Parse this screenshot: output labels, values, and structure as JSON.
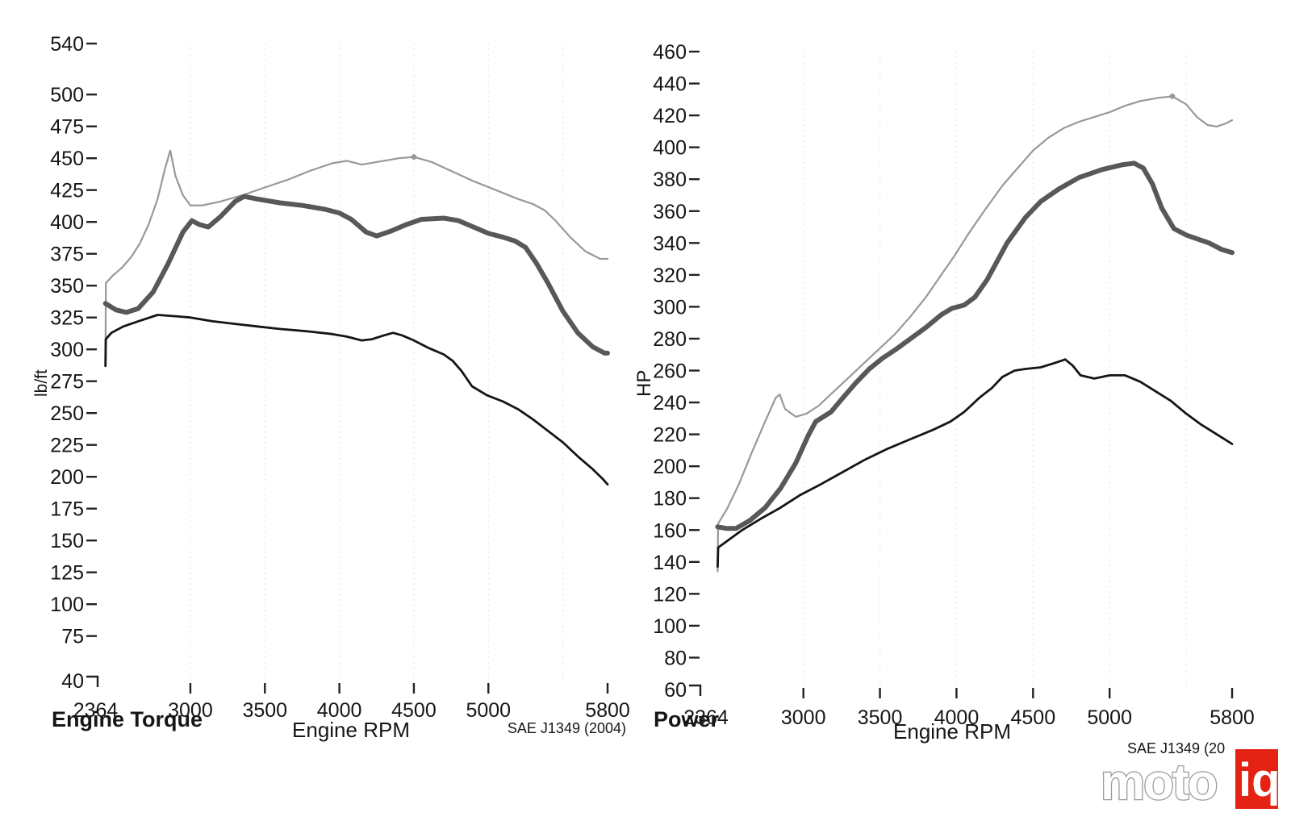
{
  "branding": {
    "logo_moto": "moto",
    "logo_iq": "iq",
    "logo_red": "#e42315",
    "logo_outline_gray": "#9b9b9b"
  },
  "chart_data": [
    {
      "id": "torque",
      "type": "line",
      "title": "Engine Torque",
      "xlabel": "Engine RPM",
      "ylabel": "lb/ft",
      "note": "SAE J1349 (2004)",
      "xlim": [
        2364,
        5800
      ],
      "ylim": [
        40,
        540
      ],
      "x_ticks": [
        2364,
        3000,
        3500,
        4000,
        4500,
        5000,
        5800
      ],
      "y_ticks": [
        540,
        500,
        475,
        450,
        425,
        400,
        375,
        350,
        325,
        300,
        275,
        250,
        225,
        200,
        175,
        150,
        125,
        100,
        75,
        40
      ],
      "grid_x": [
        3000,
        3500,
        4000,
        4500,
        5000,
        5500
      ],
      "legend": "none",
      "series": [
        {
          "id": "run-tuned-high",
          "color": "#989898",
          "width": 2.2,
          "marker": [
            4500,
            451
          ],
          "points": [
            [
              2430,
              289
            ],
            [
              2433,
              352
            ],
            [
              2480,
              358
            ],
            [
              2540,
              364
            ],
            [
              2600,
              372
            ],
            [
              2660,
              383
            ],
            [
              2720,
              398
            ],
            [
              2780,
              418
            ],
            [
              2830,
              442
            ],
            [
              2865,
              456
            ],
            [
              2900,
              436
            ],
            [
              2950,
              421
            ],
            [
              3000,
              413
            ],
            [
              3080,
              413
            ],
            [
              3200,
              416
            ],
            [
              3350,
              421
            ],
            [
              3500,
              427
            ],
            [
              3650,
              433
            ],
            [
              3800,
              440
            ],
            [
              3950,
              446
            ],
            [
              4050,
              448
            ],
            [
              4150,
              445
            ],
            [
              4250,
              447
            ],
            [
              4400,
              450
            ],
            [
              4500,
              451
            ],
            [
              4620,
              447
            ],
            [
              4750,
              440
            ],
            [
              4900,
              432
            ],
            [
              5050,
              425
            ],
            [
              5200,
              418
            ],
            [
              5300,
              414
            ],
            [
              5380,
              409
            ],
            [
              5450,
              401
            ],
            [
              5550,
              388
            ],
            [
              5650,
              377
            ],
            [
              5750,
              371
            ],
            [
              5800,
              371
            ]
          ]
        },
        {
          "id": "run-tuned-mid",
          "color": "#585858",
          "width": 6,
          "marker": null,
          "points": [
            [
              2430,
              336
            ],
            [
              2500,
              331
            ],
            [
              2570,
              329
            ],
            [
              2650,
              332
            ],
            [
              2750,
              345
            ],
            [
              2850,
              367
            ],
            [
              2950,
              392
            ],
            [
              3010,
              401
            ],
            [
              3060,
              398
            ],
            [
              3120,
              396
            ],
            [
              3200,
              404
            ],
            [
              3300,
              416
            ],
            [
              3360,
              420
            ],
            [
              3450,
              418
            ],
            [
              3600,
              415
            ],
            [
              3750,
              413
            ],
            [
              3900,
              410
            ],
            [
              4000,
              407
            ],
            [
              4080,
              402
            ],
            [
              4180,
              392
            ],
            [
              4250,
              389
            ],
            [
              4350,
              393
            ],
            [
              4450,
              398
            ],
            [
              4550,
              402
            ],
            [
              4700,
              403
            ],
            [
              4800,
              401
            ],
            [
              4900,
              396
            ],
            [
              5000,
              391
            ],
            [
              5100,
              388
            ],
            [
              5180,
              385
            ],
            [
              5250,
              380
            ],
            [
              5320,
              368
            ],
            [
              5400,
              352
            ],
            [
              5500,
              330
            ],
            [
              5600,
              313
            ],
            [
              5700,
              302
            ],
            [
              5780,
              297
            ],
            [
              5800,
              297
            ]
          ]
        },
        {
          "id": "run-stock",
          "color": "#151515",
          "width": 2.8,
          "marker": null,
          "points": [
            [
              2430,
              287
            ],
            [
              2432,
              308
            ],
            [
              2470,
              313
            ],
            [
              2550,
              318
            ],
            [
              2650,
              322
            ],
            [
              2780,
              327
            ],
            [
              2900,
              326
            ],
            [
              3000,
              325
            ],
            [
              3150,
              322
            ],
            [
              3300,
              320
            ],
            [
              3450,
              318
            ],
            [
              3600,
              316
            ],
            [
              3800,
              314
            ],
            [
              3950,
              312
            ],
            [
              4050,
              310
            ],
            [
              4150,
              307
            ],
            [
              4220,
              308
            ],
            [
              4300,
              311
            ],
            [
              4360,
              313
            ],
            [
              4420,
              311
            ],
            [
              4500,
              307
            ],
            [
              4600,
              301
            ],
            [
              4700,
              296
            ],
            [
              4760,
              291
            ],
            [
              4820,
              283
            ],
            [
              4890,
              271
            ],
            [
              4990,
              264
            ],
            [
              5100,
              259
            ],
            [
              5200,
              253
            ],
            [
              5300,
              245
            ],
            [
              5400,
              236
            ],
            [
              5500,
              227
            ],
            [
              5600,
              216
            ],
            [
              5700,
              206
            ],
            [
              5770,
              198
            ],
            [
              5800,
              194
            ]
          ]
        }
      ]
    },
    {
      "id": "power",
      "type": "line",
      "title": "Power",
      "xlabel": "Engine RPM",
      "ylabel": "HP",
      "note": "SAE J1349 (20",
      "xlim": [
        2364,
        5800
      ],
      "ylim": [
        60,
        460
      ],
      "x_ticks": [
        2364,
        3000,
        3500,
        4000,
        4500,
        5000,
        5800
      ],
      "y_ticks": [
        460,
        440,
        420,
        400,
        380,
        360,
        340,
        320,
        300,
        280,
        260,
        240,
        220,
        200,
        180,
        160,
        140,
        120,
        100,
        80,
        60
      ],
      "grid_x": [
        3000,
        3500,
        4000,
        4500,
        5000,
        5500
      ],
      "legend": "none",
      "series": [
        {
          "id": "run-tuned-high",
          "color": "#989898",
          "width": 2.2,
          "marker": [
            5410,
            432
          ],
          "points": [
            [
              2440,
              134
            ],
            [
              2443,
              164
            ],
            [
              2500,
              173
            ],
            [
              2580,
              189
            ],
            [
              2660,
              208
            ],
            [
              2750,
              228
            ],
            [
              2820,
              243
            ],
            [
              2845,
              245
            ],
            [
              2880,
              236
            ],
            [
              2950,
              231
            ],
            [
              3020,
              233
            ],
            [
              3100,
              238
            ],
            [
              3200,
              247
            ],
            [
              3300,
              256
            ],
            [
              3400,
              265
            ],
            [
              3500,
              274
            ],
            [
              3600,
              283
            ],
            [
              3700,
              294
            ],
            [
              3800,
              306
            ],
            [
              3900,
              320
            ],
            [
              3980,
              331
            ],
            [
              4080,
              346
            ],
            [
              4180,
              360
            ],
            [
              4300,
              376
            ],
            [
              4400,
              387
            ],
            [
              4500,
              398
            ],
            [
              4600,
              406
            ],
            [
              4700,
              412
            ],
            [
              4800,
              416
            ],
            [
              4900,
              419
            ],
            [
              5000,
              422
            ],
            [
              5100,
              426
            ],
            [
              5200,
              429
            ],
            [
              5320,
              431
            ],
            [
              5410,
              432
            ],
            [
              5500,
              427
            ],
            [
              5570,
              419
            ],
            [
              5640,
              414
            ],
            [
              5700,
              413
            ],
            [
              5760,
              415
            ],
            [
              5800,
              417
            ]
          ]
        },
        {
          "id": "run-tuned-mid",
          "color": "#585858",
          "width": 6,
          "marker": null,
          "points": [
            [
              2440,
              162
            ],
            [
              2500,
              161
            ],
            [
              2560,
              161
            ],
            [
              2650,
              166
            ],
            [
              2750,
              174
            ],
            [
              2850,
              186
            ],
            [
              2950,
              202
            ],
            [
              3030,
              219
            ],
            [
              3080,
              228
            ],
            [
              3130,
              231
            ],
            [
              3180,
              234
            ],
            [
              3250,
              242
            ],
            [
              3340,
              252
            ],
            [
              3430,
              261
            ],
            [
              3520,
              268
            ],
            [
              3600,
              273
            ],
            [
              3700,
              280
            ],
            [
              3800,
              287
            ],
            [
              3900,
              295
            ],
            [
              3970,
              299
            ],
            [
              4050,
              301
            ],
            [
              4120,
              306
            ],
            [
              4200,
              317
            ],
            [
              4330,
              340
            ],
            [
              4450,
              356
            ],
            [
              4550,
              366
            ],
            [
              4670,
              374
            ],
            [
              4800,
              381
            ],
            [
              4950,
              386
            ],
            [
              5080,
              389
            ],
            [
              5160,
              390
            ],
            [
              5220,
              387
            ],
            [
              5280,
              377
            ],
            [
              5340,
              362
            ],
            [
              5420,
              349
            ],
            [
              5500,
              345
            ],
            [
              5560,
              343
            ],
            [
              5650,
              340
            ],
            [
              5730,
              336
            ],
            [
              5800,
              334
            ]
          ]
        },
        {
          "id": "run-stock",
          "color": "#151515",
          "width": 2.8,
          "marker": null,
          "points": [
            [
              2440,
              137
            ],
            [
              2443,
              149
            ],
            [
              2500,
              153
            ],
            [
              2600,
              160
            ],
            [
              2720,
              167
            ],
            [
              2850,
              174
            ],
            [
              2980,
              182
            ],
            [
              3100,
              188
            ],
            [
              3250,
              196
            ],
            [
              3400,
              204
            ],
            [
              3550,
              211
            ],
            [
              3700,
              217
            ],
            [
              3850,
              223
            ],
            [
              3960,
              228
            ],
            [
              4050,
              234
            ],
            [
              4150,
              243
            ],
            [
              4230,
              249
            ],
            [
              4300,
              256
            ],
            [
              4380,
              260
            ],
            [
              4450,
              261
            ],
            [
              4550,
              262
            ],
            [
              4650,
              265
            ],
            [
              4710,
              267
            ],
            [
              4760,
              263
            ],
            [
              4810,
              257
            ],
            [
              4900,
              255
            ],
            [
              5000,
              257
            ],
            [
              5100,
              257
            ],
            [
              5200,
              253
            ],
            [
              5300,
              247
            ],
            [
              5400,
              241
            ],
            [
              5500,
              233
            ],
            [
              5600,
              226
            ],
            [
              5700,
              220
            ],
            [
              5800,
              214
            ]
          ]
        }
      ]
    }
  ]
}
